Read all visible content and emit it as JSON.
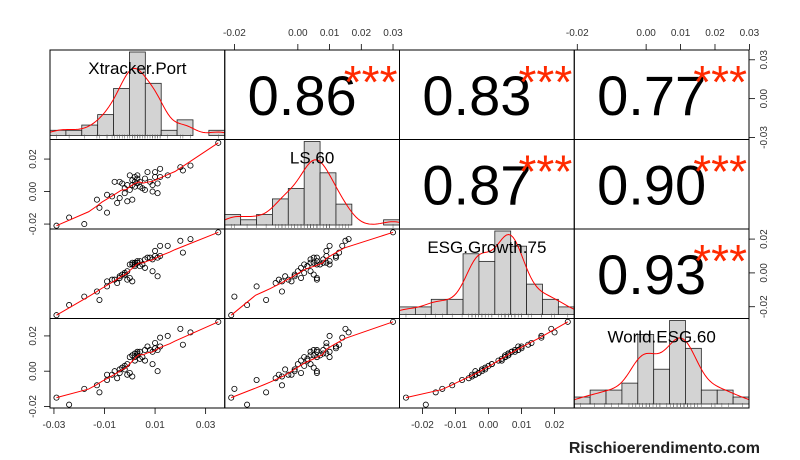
{
  "chart_data": {
    "type": "scatter-matrix",
    "variables": [
      "Xtracker.Port",
      "LS.60",
      "ESG.Growth.75",
      "World.ESG.60"
    ],
    "series": [
      {
        "name": "Xtracker.Port",
        "values": [
          -0.029,
          -0.024,
          -0.018,
          -0.013,
          -0.012,
          -0.009,
          -0.009,
          -0.007,
          -0.006,
          -0.004,
          -0.004,
          -0.003,
          -0.002,
          -0.002,
          -0.001,
          -0.001,
          0.0,
          0.0,
          0.001,
          0.001,
          0.002,
          0.002,
          0.002,
          0.003,
          0.003,
          0.003,
          0.004,
          0.004,
          0.005,
          0.006,
          0.006,
          0.007,
          0.008,
          0.009,
          0.01,
          0.01,
          0.011,
          0.011,
          0.012,
          0.012,
          0.015,
          0.02,
          0.021,
          0.024,
          0.035,
          -0.005,
          0.001,
          0.009
        ]
      },
      {
        "name": "LS.60",
        "values": [
          -0.021,
          -0.016,
          -0.02,
          -0.005,
          -0.01,
          -0.013,
          -0.002,
          -0.003,
          0.006,
          0.006,
          -0.004,
          0.005,
          -0.001,
          0.002,
          0.004,
          -0.006,
          0.001,
          0.01,
          0.007,
          -0.005,
          0.009,
          0.006,
          0.003,
          0.01,
          0.005,
          0.008,
          0.003,
          0.006,
          0.002,
          0.008,
          0.001,
          0.012,
          0.006,
          0.004,
          0.012,
          0.009,
          0.005,
          -0.001,
          0.014,
          0.009,
          0.01,
          0.015,
          0.013,
          0.016,
          0.03,
          -0.007,
          0.004,
          0.0
        ]
      },
      {
        "name": "ESG.Growth.75",
        "values": [
          -0.025,
          -0.019,
          -0.014,
          -0.011,
          -0.016,
          -0.008,
          -0.005,
          -0.004,
          -0.004,
          -0.003,
          -0.002,
          -0.001,
          -0.001,
          0.0,
          0.001,
          -0.004,
          -0.003,
          0.005,
          0.005,
          -0.005,
          0.006,
          0.005,
          0.004,
          0.007,
          0.006,
          0.006,
          0.004,
          0.007,
          0.005,
          0.008,
          0.003,
          0.009,
          0.009,
          0.008,
          0.01,
          0.013,
          0.009,
          -0.002,
          0.016,
          0.01,
          0.016,
          0.019,
          0.012,
          0.02,
          0.024,
          -0.006,
          0.006,
          0.001
        ]
      },
      {
        "name": "World.ESG.60",
        "values": [
          -0.015,
          -0.019,
          -0.01,
          -0.008,
          -0.012,
          -0.005,
          -0.002,
          -0.002,
          0.0,
          -0.001,
          0.001,
          0.002,
          0.001,
          0.003,
          0.004,
          -0.002,
          -0.001,
          0.008,
          0.009,
          -0.003,
          0.01,
          0.008,
          0.006,
          0.011,
          0.009,
          0.01,
          0.007,
          0.011,
          0.008,
          0.012,
          0.006,
          0.014,
          0.012,
          0.011,
          0.013,
          0.016,
          0.012,
          0.0,
          0.019,
          0.014,
          0.02,
          0.024,
          0.015,
          0.022,
          0.028,
          -0.004,
          0.009,
          0.004
        ]
      }
    ],
    "correlations": [
      {
        "row": 0,
        "col": 1,
        "value": "0.86",
        "stars": "***"
      },
      {
        "row": 0,
        "col": 2,
        "value": "0.83",
        "stars": "***"
      },
      {
        "row": 0,
        "col": 3,
        "value": "0.77",
        "stars": "***"
      },
      {
        "row": 1,
        "col": 2,
        "value": "0.87",
        "stars": "***"
      },
      {
        "row": 1,
        "col": 3,
        "value": "0.90",
        "stars": "***"
      },
      {
        "row": 2,
        "col": 3,
        "value": "0.93",
        "stars": "***"
      }
    ],
    "axes": {
      "top_col1": [
        "-0.02",
        "0.00",
        "0.01",
        "0.02",
        "0.03"
      ],
      "top_col3": [
        "-0.02",
        "0.00",
        "0.01",
        "0.02",
        "0.03"
      ],
      "bottom_col0": [
        "-0.03",
        "-0.01",
        "0.01",
        "0.03"
      ],
      "bottom_col2": [
        "-0.02",
        "-0.01",
        "0.00",
        "0.01",
        "0.02"
      ],
      "left_row1": [
        "-0.02",
        "0.00",
        "0.02"
      ],
      "left_row3": [
        "-0.02",
        "0.00",
        "0.02"
      ],
      "right_row0": [
        "-0.03",
        "0.00",
        "0.03"
      ],
      "right_row2": [
        "-0.02",
        "0.00",
        "0.02"
      ]
    },
    "diagonal": "histogram with density curve and rug",
    "lower": "scatter with smoothed fit line",
    "upper": "correlation coefficient with significance stars",
    "colors": {
      "fit_line": "#ff0000",
      "stars": "#ff2a00",
      "bars": "#d3d3d3"
    },
    "watermark": "Rischioerendimento.com"
  }
}
